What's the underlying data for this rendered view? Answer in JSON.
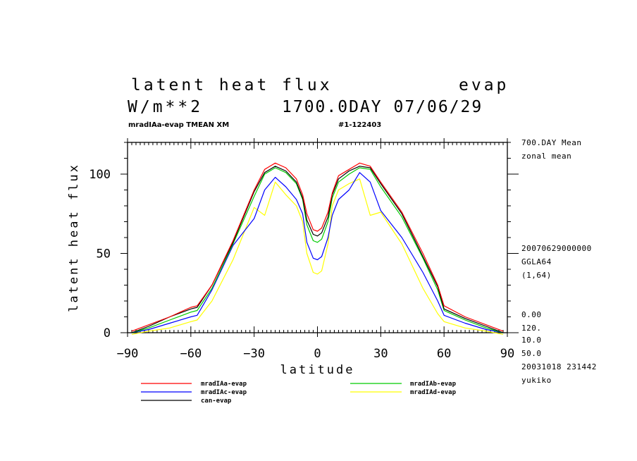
{
  "header": {
    "title_left": "latent heat flux",
    "title_right": "evap",
    "units": "W/m**2",
    "time": "1700.0DAY 07/06/29",
    "sub_left": "mradIAa-evap TMEAN XM",
    "sub_right": "#1-122403"
  },
  "side_info": [
    "700.DAY Mean",
    "zonal mean",
    "20070629000000",
    "GGLA64",
    "(1,64)",
    "0.00",
    "120.",
    "10.0",
    "50.0",
    "20031018 231442",
    "yukiko"
  ],
  "colors": {
    "red": "#ff0000",
    "green": "#00cc00",
    "blue": "#0000ff",
    "yellow": "#ffff00",
    "black": "#000000"
  },
  "chart_data": {
    "type": "line",
    "title": "latent heat flux",
    "xlabel": "latitude",
    "ylabel": "latent heat flux",
    "xlim": [
      -90,
      90
    ],
    "ylim": [
      0,
      120
    ],
    "xticks": [
      -90,
      -60,
      -30,
      0,
      30,
      60,
      90
    ],
    "yticks": [
      0,
      50,
      100
    ],
    "x": [
      -88,
      -80,
      -70,
      -60,
      -57,
      -50,
      -40,
      -30,
      -25,
      -20,
      -15,
      -10,
      -7,
      -5,
      -2,
      0,
      2,
      5,
      7,
      10,
      15,
      20,
      25,
      30,
      40,
      50,
      57,
      60,
      70,
      80,
      88
    ],
    "series": [
      {
        "name": "mradIAa-evap",
        "color": "#ff0000",
        "values": [
          1,
          5,
          10,
          16,
          17,
          30,
          58,
          90,
          103,
          107,
          104,
          97,
          87,
          75,
          65,
          64,
          66,
          76,
          88,
          99,
          103,
          107,
          105,
          95,
          76,
          50,
          30,
          17,
          10,
          5,
          1
        ]
      },
      {
        "name": "mradIAb-evap",
        "color": "#00cc00",
        "values": [
          0,
          3,
          8,
          13,
          14,
          28,
          56,
          86,
          100,
          104,
          101,
          94,
          84,
          68,
          58,
          57,
          59,
          70,
          85,
          95,
          100,
          104,
          103,
          92,
          73,
          47,
          27,
          14,
          8,
          3,
          0
        ]
      },
      {
        "name": "mradIAc-evap",
        "color": "#0000ff",
        "values": [
          0,
          2,
          6,
          10,
          11,
          27,
          55,
          72,
          90,
          98,
          92,
          84,
          75,
          57,
          47,
          46,
          48,
          60,
          74,
          84,
          90,
          101,
          95,
          77,
          60,
          38,
          20,
          11,
          6,
          2,
          0
        ]
      },
      {
        "name": "mradIAd-evap",
        "color": "#ffff00",
        "values": [
          -1,
          1,
          3,
          7,
          8,
          20,
          46,
          79,
          74,
          95,
          87,
          80,
          70,
          50,
          38,
          37,
          39,
          56,
          80,
          90,
          94,
          97,
          74,
          76,
          56,
          28,
          12,
          7,
          3,
          1,
          -1
        ]
      },
      {
        "name": "can-evap",
        "color": "#000000",
        "values": [
          0,
          4,
          10,
          15,
          16,
          30,
          57,
          89,
          101,
          105,
          102,
          95,
          85,
          71,
          62,
          61,
          63,
          73,
          87,
          97,
          102,
          105,
          104,
          94,
          75,
          48,
          29,
          15,
          9,
          4,
          0
        ]
      }
    ]
  }
}
